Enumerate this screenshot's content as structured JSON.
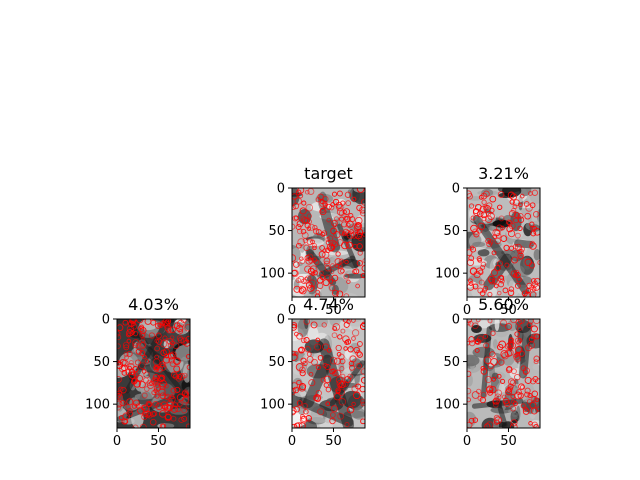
{
  "chart_data": [
    {
      "type": "image",
      "title": "target",
      "grid_position": "row 1, column 2",
      "xticks": [
        "0",
        "50"
      ],
      "yticks": [
        "0",
        "50",
        "100"
      ],
      "xlim": [
        0,
        88
      ],
      "ylim": [
        128,
        0
      ],
      "marker": "circle",
      "marker_color": "#ff0000",
      "base_shade": "#b8b8b8",
      "overlay_density": 0.8
    },
    {
      "type": "image",
      "title": "3.21%",
      "grid_position": "row 1, column 3",
      "xticks": [
        "0",
        "50"
      ],
      "yticks": [
        "0",
        "50",
        "100"
      ],
      "xlim": [
        0,
        88
      ],
      "ylim": [
        128,
        0
      ],
      "marker": "circle",
      "marker_color": "#ff0000",
      "base_shade": "#bdbdbd",
      "overlay_density": 0.55
    },
    {
      "type": "image",
      "title": "4.03%",
      "grid_position": "row 2, column 1",
      "xticks": [
        "0",
        "50"
      ],
      "yticks": [
        "0",
        "50",
        "100"
      ],
      "xlim": [
        0,
        88
      ],
      "ylim": [
        128,
        0
      ],
      "marker": "circle",
      "marker_color": "#ff0000",
      "base_shade": "#3a3a3a",
      "overlay_density": 1.0
    },
    {
      "type": "image",
      "title": "4.74%",
      "grid_position": "row 2, column 2",
      "xticks": [
        "0",
        "50"
      ],
      "yticks": [
        "0",
        "50",
        "100"
      ],
      "xlim": [
        0,
        88
      ],
      "ylim": [
        128,
        0
      ],
      "marker": "circle",
      "marker_color": "#ff0000",
      "base_shade": "#c4c4c4",
      "overlay_density": 0.45
    },
    {
      "type": "image",
      "title": "5.60%",
      "grid_position": "row 2, column 3",
      "xticks": [
        "0",
        "50"
      ],
      "yticks": [
        "0",
        "50",
        "100"
      ],
      "xlim": [
        0,
        88
      ],
      "ylim": [
        128,
        0
      ],
      "marker": "circle",
      "marker_color": "#ff0000",
      "base_shade": "#bababa",
      "overlay_density": 0.5
    }
  ]
}
